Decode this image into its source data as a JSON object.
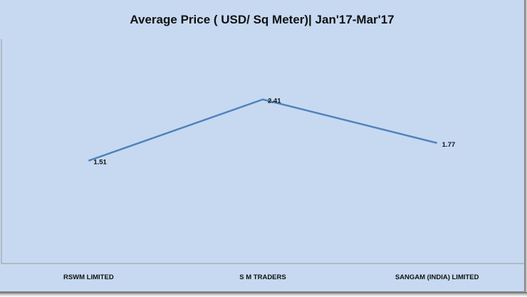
{
  "chart_data": {
    "type": "line",
    "title": "Average Price ( USD/ Sq Meter)| Jan'17-Mar'17",
    "categories": [
      "RSWM LIMITED",
      "S M TRADERS",
      "SANGAM (INDIA) LIMITED"
    ],
    "series": [
      {
        "values": [
          1.51,
          2.41,
          1.77
        ],
        "color": "#4f81bd"
      }
    ],
    "data_labels": [
      "1.51",
      "2.41",
      "1.77"
    ],
    "ylim": [
      0,
      3.4
    ],
    "grid": false,
    "legend": "none",
    "background": "#c6d9f1"
  }
}
